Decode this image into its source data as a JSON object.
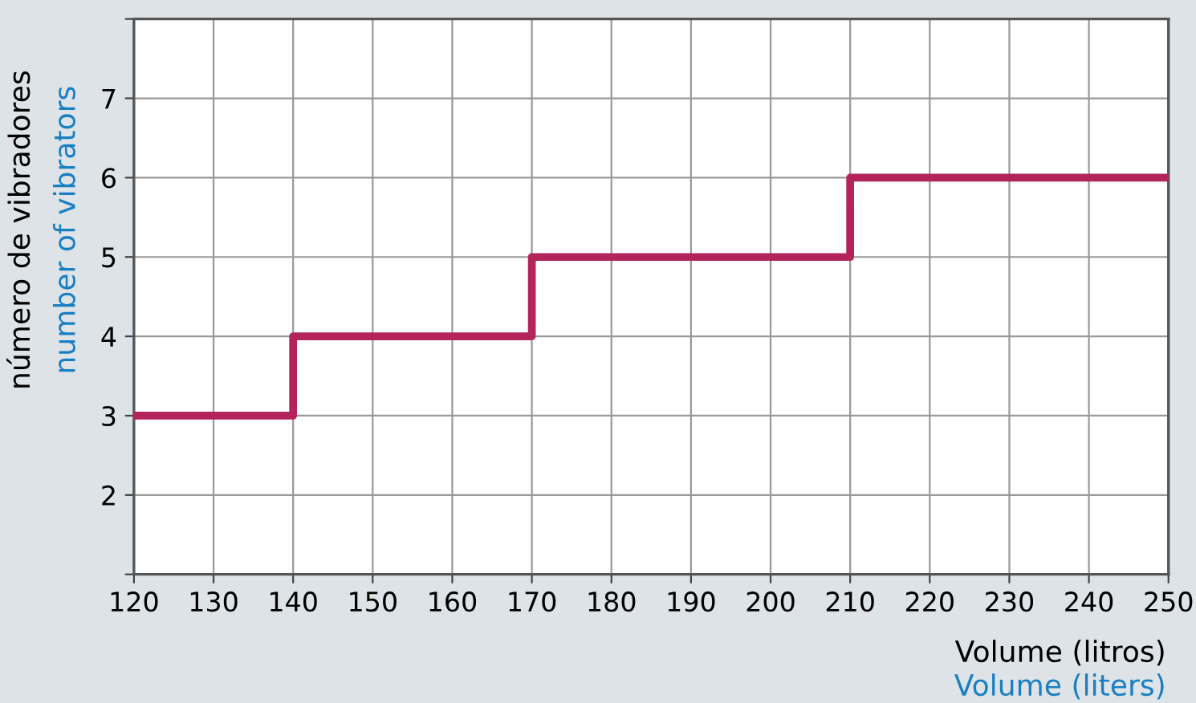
{
  "chart_data": {
    "type": "step",
    "xlabel": "Volume (litros)",
    "ylabel": "número de vibradores",
    "annotations": [
      "number of vibrators",
      "Volume (liters)"
    ],
    "x": [
      120,
      140,
      170,
      210,
      250
    ],
    "series": [
      {
        "color": "#b3245a",
        "values": [
          3,
          4,
          5,
          6,
          6
        ]
      }
    ],
    "xlim": [
      120,
      250
    ],
    "xticks": [
      120,
      130,
      140,
      150,
      160,
      170,
      180,
      190,
      200,
      210,
      220,
      230,
      240,
      250
    ],
    "ylim": [
      1,
      8
    ],
    "yticks": [
      {
        "value": 1,
        "label": null
      },
      2,
      3,
      4,
      5,
      6,
      7,
      {
        "value": 8,
        "label": null
      }
    ],
    "grid": true,
    "legend": false
  }
}
